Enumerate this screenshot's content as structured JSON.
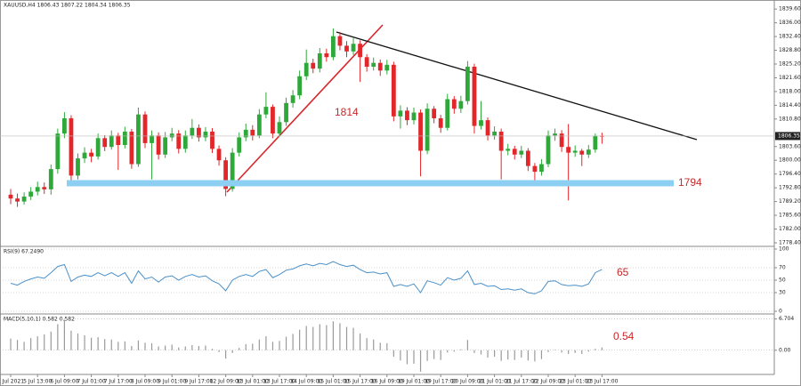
{
  "chart_data": [
    {
      "type": "candlestick",
      "title": "XAUUSD,H4  1806.43 1807.22 1804.34 1806.35",
      "categories": [
        "2 Jul 2021",
        null,
        null,
        null,
        "5 Jul 13:00",
        null,
        null,
        null,
        "6 Jul 09:00",
        null,
        null,
        null,
        "7 Jul 01:00",
        null,
        null,
        null,
        "7 Jul 17:00",
        null,
        null,
        null,
        "8 Jul 09:00",
        null,
        null,
        null,
        "9 Jul 01:00",
        null,
        null,
        null,
        "9 Jul 17:00",
        null,
        null,
        null,
        "12 Jul 09:00",
        null,
        null,
        null,
        "13 Jul 01:00",
        null,
        null,
        null,
        "13 Jul 17:00",
        null,
        null,
        null,
        "14 Jul 09:00",
        null,
        null,
        null,
        "15 Jul 01:00",
        null,
        null,
        null,
        "15 Jul 17:00",
        null,
        null,
        null,
        "16 Jul 09:00",
        null,
        null,
        null,
        "19 Jul 01:00",
        null,
        null,
        null,
        "19 Jul 17:00",
        null,
        null,
        null,
        "20 Jul 09:00",
        null,
        null,
        null,
        "21 Jul 01:00",
        null,
        null,
        null,
        "21 Jul 17:00",
        null,
        null,
        null,
        "22 Jul 09:00",
        null,
        null,
        null,
        "23 Jul 01:00",
        null,
        null,
        null,
        "23 Jul 17:00"
      ],
      "open": [
        1791.0,
        1790.0,
        1789.2,
        1790.5,
        1791.8,
        1793.0,
        1792.4,
        1797.7,
        1807.0,
        1811.0,
        1796.0,
        1800.5,
        1802.0,
        1801.0,
        1805.8,
        1803.5,
        1806.5,
        1804.0,
        1807.5,
        1799.0,
        1812.0,
        1804.5,
        1806.5,
        1801.5,
        1806.0,
        1807.0,
        1803.0,
        1806.5,
        1808.5,
        1806.0,
        1807.5,
        1803.0,
        1800.0,
        1792.5,
        1802.0,
        1806.0,
        1808.0,
        1806.5,
        1812.0,
        1814.0,
        1807.0,
        1810.0,
        1815.0,
        1817.0,
        1822.0,
        1825.5,
        1824.0,
        1828.0,
        1827.0,
        1832.5,
        1830.0,
        1828.5,
        1830.5,
        1827.0,
        1824.5,
        1825.5,
        1823.5,
        1825.0,
        1811.5,
        1813.0,
        1810.5,
        1812.5,
        1802.5,
        1813.5,
        1811.0,
        1808.5,
        1816.0,
        1813.5,
        1815.5,
        1824.5,
        1809.0,
        1810.5,
        1806.5,
        1807.5,
        1802.5,
        1803.0,
        1801.5,
        1802.5,
        1798.5,
        1797.0,
        1799.0,
        1806.5,
        1807.0,
        1803.5,
        1802.0,
        1802.5,
        1801.5,
        1802.8,
        1806.43
      ],
      "high": [
        1792.5,
        1791.3,
        1791.6,
        1793.0,
        1794.4,
        1794.2,
        1798.9,
        1808.3,
        1812.6,
        1811.8,
        1801.8,
        1803.4,
        1803.0,
        1807.0,
        1806.6,
        1807.8,
        1807.2,
        1808.8,
        1808.2,
        1813.8,
        1812.8,
        1807.8,
        1807.3,
        1807.4,
        1808.5,
        1807.9,
        1807.8,
        1810.8,
        1809.4,
        1808.7,
        1808.4,
        1803.9,
        1800.8,
        1803.2,
        1807.3,
        1809.6,
        1809.2,
        1813.4,
        1817.8,
        1814.6,
        1811.5,
        1816.4,
        1818.4,
        1823.5,
        1829.0,
        1826.6,
        1829.4,
        1829.2,
        1834.5,
        1833.6,
        1831.2,
        1832.0,
        1831.4,
        1827.8,
        1826.9,
        1826.4,
        1826.3,
        1825.8,
        1814.4,
        1813.9,
        1813.8,
        1813.3,
        1814.9,
        1814.2,
        1811.9,
        1817.4,
        1816.8,
        1816.9,
        1826.0,
        1825.3,
        1815.5,
        1811.2,
        1808.9,
        1808.3,
        1804.3,
        1803.8,
        1803.8,
        1803.2,
        1799.3,
        1800.3,
        1807.8,
        1808.3,
        1807.9,
        1809.5,
        1803.9,
        1803.0,
        1804.0,
        1807.0,
        1807.22
      ],
      "low": [
        1788.5,
        1787.8,
        1788.4,
        1789.6,
        1790.8,
        1791.2,
        1791.0,
        1796.5,
        1805.8,
        1793.2,
        1795.0,
        1799.3,
        1799.5,
        1800.2,
        1802.4,
        1802.8,
        1797.5,
        1803.1,
        1797.8,
        1798.3,
        1803.2,
        1795.0,
        1800.2,
        1800.6,
        1805.0,
        1801.8,
        1802.0,
        1805.6,
        1804.9,
        1805.0,
        1801.9,
        1798.6,
        1790.6,
        1791.8,
        1801.0,
        1805.0,
        1805.2,
        1805.8,
        1811.0,
        1805.8,
        1806.2,
        1809.0,
        1813.8,
        1816.0,
        1821.0,
        1822.8,
        1823.0,
        1825.8,
        1826.2,
        1828.8,
        1827.0,
        1827.6,
        1820.5,
        1823.2,
        1823.5,
        1822.1,
        1822.5,
        1810.2,
        1808.3,
        1809.2,
        1809.4,
        1795.8,
        1801.6,
        1809.7,
        1807.2,
        1807.8,
        1812.2,
        1812.4,
        1814.6,
        1807.0,
        1808.1,
        1805.2,
        1805.4,
        1795.0,
        1801.3,
        1800.2,
        1800.6,
        1797.2,
        1793.6,
        1796.0,
        1798.2,
        1805.1,
        1802.2,
        1789.5,
        1800.9,
        1798.5,
        1800.6,
        1802.0,
        1804.34
      ],
      "close": [
        1790.0,
        1789.2,
        1790.5,
        1791.8,
        1793.0,
        1792.4,
        1797.7,
        1807.0,
        1811.0,
        1796.0,
        1800.5,
        1802.0,
        1801.0,
        1805.8,
        1803.5,
        1806.5,
        1804.0,
        1807.5,
        1799.0,
        1812.0,
        1804.5,
        1806.5,
        1801.5,
        1806.0,
        1807.0,
        1803.0,
        1806.5,
        1808.5,
        1806.0,
        1807.5,
        1803.0,
        1800.0,
        1792.5,
        1802.0,
        1806.0,
        1808.0,
        1806.5,
        1812.0,
        1814.0,
        1807.0,
        1810.0,
        1815.0,
        1817.0,
        1822.0,
        1825.5,
        1824.0,
        1828.0,
        1827.0,
        1832.5,
        1830.0,
        1828.5,
        1830.5,
        1827.0,
        1824.5,
        1825.5,
        1823.5,
        1825.0,
        1811.5,
        1813.0,
        1810.5,
        1812.5,
        1802.5,
        1813.5,
        1811.0,
        1808.5,
        1816.0,
        1813.5,
        1815.5,
        1824.5,
        1809.0,
        1810.5,
        1806.5,
        1807.5,
        1802.5,
        1803.0,
        1801.5,
        1802.5,
        1798.5,
        1797.0,
        1799.0,
        1806.5,
        1807.0,
        1803.5,
        1802.0,
        1802.5,
        1801.5,
        1802.8,
        1806.43,
        1806.35
      ],
      "up_color": "#2fa83a",
      "down_color": "#e3262a",
      "ylim": [
        1777.7,
        1841.5
      ],
      "yticks": [
        {
          "value": 1839.6,
          "label": "1839.60"
        },
        {
          "value": 1836.0,
          "label": "1836.00"
        },
        {
          "value": 1832.4,
          "label": "1832.40"
        },
        {
          "value": 1828.8,
          "label": "1828.80"
        },
        {
          "value": 1825.2,
          "label": "1825.20"
        },
        {
          "value": 1821.6,
          "label": "1821.60"
        },
        {
          "value": 1818.0,
          "label": "1818.00"
        },
        {
          "value": 1814.4,
          "label": "1814.40"
        },
        {
          "value": 1810.8,
          "label": "1810.80"
        },
        {
          "value": 1803.6,
          "label": "1803.60"
        },
        {
          "value": 1800.0,
          "label": "1800.00"
        },
        {
          "value": 1796.4,
          "label": "1796.40"
        },
        {
          "value": 1792.8,
          "label": "1792.80"
        },
        {
          "value": 1789.2,
          "label": "1789.20"
        },
        {
          "value": 1785.6,
          "label": "1785.60"
        },
        {
          "value": 1782.0,
          "label": "1782.00"
        },
        {
          "value": 1778.4,
          "label": "1778.40"
        }
      ],
      "last_price": 1806.35,
      "support": 1794,
      "annotation": "1814",
      "grid": false
    },
    {
      "type": "line",
      "title": "RSI(9) 67.2490",
      "values": [
        45,
        42,
        48,
        52,
        55,
        53,
        62,
        72,
        75,
        48,
        55,
        58,
        56,
        62,
        57,
        62,
        56,
        62,
        45,
        65,
        52,
        55,
        47,
        55,
        57,
        50,
        56,
        59,
        55,
        57,
        49,
        44,
        33,
        50,
        56,
        59,
        56,
        64,
        67,
        54,
        59,
        66,
        68,
        73,
        76,
        73,
        77,
        75,
        80,
        75,
        72,
        74,
        67,
        62,
        63,
        60,
        62,
        40,
        43,
        40,
        44,
        30,
        49,
        46,
        42,
        54,
        50,
        53,
        65,
        43,
        45,
        40,
        41,
        35,
        36,
        34,
        36,
        30,
        28,
        33,
        48,
        49,
        43,
        41,
        42,
        40,
        44,
        62,
        67.249
      ],
      "color": "#4a90c8",
      "ylim": [
        0,
        100
      ],
      "yticks": [
        100,
        70,
        50,
        30,
        0
      ],
      "annotation": "65",
      "grid": true
    },
    {
      "type": "bar",
      "title": "MACD(5,10,1) 0.582 0.582",
      "values": [
        2.5,
        2.2,
        1.8,
        2.6,
        3.0,
        3.4,
        4.0,
        5.6,
        6.5,
        4.2,
        3.6,
        3.2,
        2.7,
        2.8,
        2.4,
        2.3,
        1.8,
        1.9,
        0.9,
        2.1,
        1.6,
        1.5,
        0.8,
        1.0,
        1.2,
        0.6,
        0.8,
        1.1,
        0.9,
        1.0,
        0.3,
        -0.4,
        -1.8,
        -0.6,
        0.5,
        1.3,
        1.4,
        2.3,
        3.0,
        1.8,
        2.0,
        2.9,
        3.5,
        4.4,
        5.2,
        5.0,
        5.6,
        5.4,
        6.2,
        5.8,
        5.0,
        4.8,
        3.6,
        2.6,
        2.3,
        1.6,
        1.5,
        -1.4,
        -2.2,
        -3.0,
        -2.9,
        -4.6,
        -2.3,
        -1.9,
        -2.1,
        -0.5,
        -0.3,
        0.2,
        2.2,
        -0.6,
        -0.9,
        -1.6,
        -1.4,
        -2.3,
        -2.0,
        -2.1,
        -1.6,
        -2.2,
        -2.4,
        -1.9,
        -0.4,
        0.1,
        -0.5,
        -0.8,
        -0.6,
        -0.8,
        -0.3,
        0.3,
        0.582
      ],
      "color": "#9a9a9a",
      "ylim": [
        -5.2,
        7.4
      ],
      "yticks": [
        {
          "value": 6.704,
          "label": "6.704"
        },
        {
          "value": 0,
          "label": "0.00"
        }
      ],
      "annotation": "0.54",
      "grid": true
    }
  ]
}
